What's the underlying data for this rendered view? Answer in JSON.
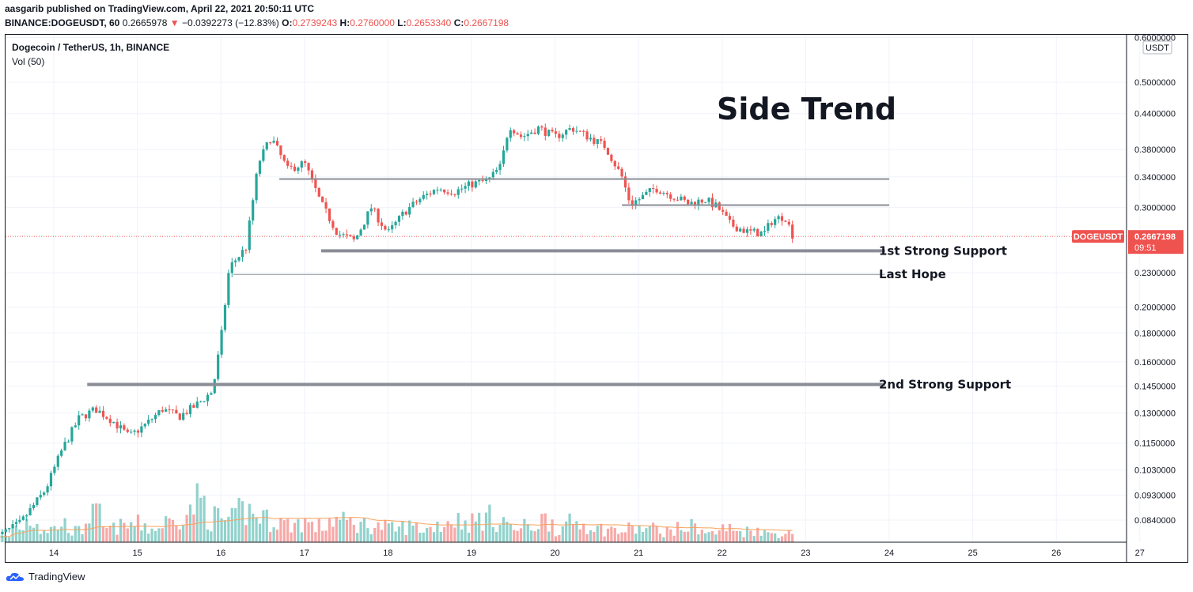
{
  "header": {
    "publisher_line": "aasgarib published on TradingView.com, April 22, 2021 20:50:11 UTC",
    "symbol_interval": "BINANCE:DOGEUSDT, 60",
    "last_price": "0.2665978",
    "change": "−0.0392273 (−12.83%)",
    "open_label": "O:",
    "open": "0.2739243",
    "high_label": "H:",
    "high": "0.2760000",
    "low_label": "L:",
    "low": "0.2653340",
    "close_label": "C:",
    "close": "0.2667198"
  },
  "legend": {
    "title": "Dogecoin / TetherUS, 1h, BINANCE",
    "volume": "Vol (50)"
  },
  "footer": {
    "brand": "TradingView"
  },
  "colors": {
    "up": "#26a69a",
    "down": "#ef5350",
    "level_line": "#8a8d96",
    "ma": "#f7a35c",
    "price_tag": "#ef5350"
  },
  "chart_data": {
    "type": "candlestick",
    "symbol": "DOGEUSDT",
    "currency_label": "USDT",
    "y_scale": "log",
    "y_ticks": [
      "0.6000000",
      "0.5000000",
      "0.4400000",
      "0.3800000",
      "0.3400000",
      "0.3000000",
      "0.2300000",
      "0.2000000",
      "0.1800000",
      "0.1600000",
      "0.1450000",
      "0.1300000",
      "0.1150000",
      "0.1030000",
      "0.0930000",
      "0.0840000"
    ],
    "x_ticks": [
      "14",
      "15",
      "16",
      "17",
      "18",
      "19",
      "20",
      "21",
      "22",
      "23",
      "24",
      "25",
      "26",
      "27"
    ],
    "last_price_tag": {
      "label": "DOGEUSDT",
      "price": "0.2667198",
      "countdown": "09:51"
    },
    "price_path": [
      [
        13.3,
        0.078
      ],
      [
        13.6,
        0.083
      ],
      [
        13.9,
        0.095
      ],
      [
        14.1,
        0.112
      ],
      [
        14.3,
        0.127
      ],
      [
        14.5,
        0.132
      ],
      [
        14.7,
        0.126
      ],
      [
        14.9,
        0.118
      ],
      [
        15.1,
        0.124
      ],
      [
        15.3,
        0.132
      ],
      [
        15.5,
        0.128
      ],
      [
        15.7,
        0.134
      ],
      [
        15.9,
        0.142
      ],
      [
        16.0,
        0.175
      ],
      [
        16.1,
        0.235
      ],
      [
        16.3,
        0.255
      ],
      [
        16.45,
        0.36
      ],
      [
        16.6,
        0.4
      ],
      [
        16.8,
        0.35
      ],
      [
        17.0,
        0.36
      ],
      [
        17.2,
        0.305
      ],
      [
        17.4,
        0.27
      ],
      [
        17.6,
        0.262
      ],
      [
        17.8,
        0.3
      ],
      [
        18.0,
        0.27
      ],
      [
        18.2,
        0.295
      ],
      [
        18.4,
        0.312
      ],
      [
        18.6,
        0.325
      ],
      [
        18.8,
        0.32
      ],
      [
        19.0,
        0.33
      ],
      [
        19.2,
        0.335
      ],
      [
        19.35,
        0.355
      ],
      [
        19.45,
        0.42
      ],
      [
        19.6,
        0.4
      ],
      [
        19.8,
        0.415
      ],
      [
        20.0,
        0.4
      ],
      [
        20.2,
        0.415
      ],
      [
        20.4,
        0.4
      ],
      [
        20.6,
        0.385
      ],
      [
        20.8,
        0.34
      ],
      [
        20.9,
        0.305
      ],
      [
        21.0,
        0.31
      ],
      [
        21.2,
        0.325
      ],
      [
        21.4,
        0.315
      ],
      [
        21.6,
        0.305
      ],
      [
        21.8,
        0.31
      ],
      [
        21.95,
        0.3
      ],
      [
        22.1,
        0.28
      ],
      [
        22.3,
        0.272
      ],
      [
        22.5,
        0.27
      ],
      [
        22.6,
        0.285
      ],
      [
        22.75,
        0.29
      ],
      [
        22.85,
        0.267
      ]
    ],
    "volume_scale": [
      0.12,
      0.35,
      0.5,
      0.3,
      0.4,
      0.25,
      0.6,
      0.3,
      0.35,
      0.4,
      0.3,
      0.45,
      0.65,
      0.9,
      0.55,
      0.5,
      0.7,
      0.6,
      0.5,
      0.4,
      0.45,
      0.35,
      0.5,
      0.45,
      0.4,
      0.35,
      0.3,
      0.35,
      0.3,
      0.4,
      0.5,
      0.45,
      0.55,
      0.5,
      0.3,
      0.35,
      0.5,
      0.3,
      0.45,
      0.4,
      0.3,
      0.25,
      0.3,
      0.3,
      0.25,
      0.3,
      0.35,
      0.2,
      0.3,
      0.25,
      0.3,
      0.2,
      0.2
    ],
    "horizontal_levels": [
      {
        "price": 0.337,
        "x_from": 16.7,
        "x_to": 24.0,
        "weight": "thin",
        "label": ""
      },
      {
        "price": 0.303,
        "x_from": 20.8,
        "x_to": 24.0,
        "weight": "thin",
        "label": ""
      },
      {
        "price": 0.2515,
        "x_from": 17.2,
        "x_to": 23.95,
        "weight": "thick",
        "label": "1st Strong Support"
      },
      {
        "price": 0.2285,
        "x_from": 16.15,
        "x_to": 23.95,
        "weight": "thin",
        "label": "Last Hope"
      },
      {
        "price": 0.146,
        "x_from": 14.4,
        "x_to": 23.95,
        "weight": "thick",
        "label": "2nd Strong Support"
      }
    ],
    "annotation_title": "Side Trend"
  }
}
